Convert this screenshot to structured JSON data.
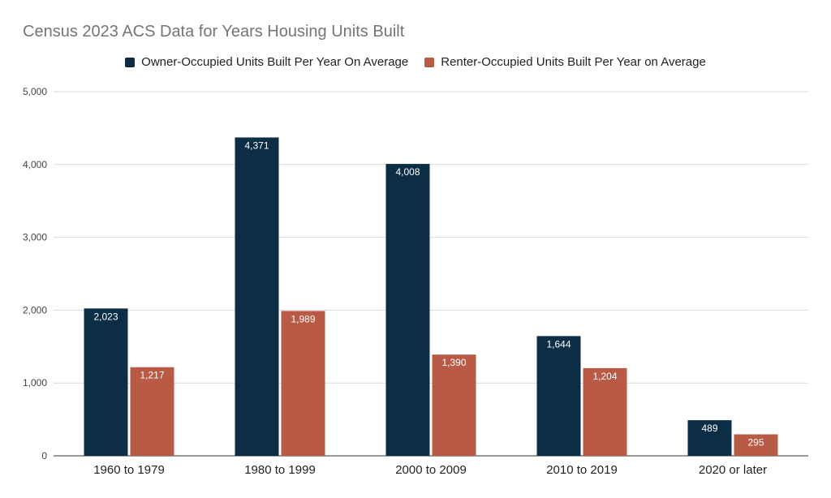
{
  "chart_data": {
    "type": "bar",
    "title": "Census 2023 ACS Data for Years Housing Units Built",
    "categories": [
      "1960 to 1979",
      "1980 to 1999",
      "2000 to 2009",
      "2010 to 2019",
      "2020 or later"
    ],
    "series": [
      {
        "name": "Owner-Occupied Units Built Per Year On Average",
        "color": "#0b2d45",
        "values": [
          2023,
          4371,
          4008,
          1644,
          489
        ],
        "labels": [
          "2,023",
          "4,371",
          "4,008",
          "1,644",
          "489"
        ]
      },
      {
        "name": "Renter-Occupied Units Built Per Year on Average",
        "color": "#b85a45",
        "values": [
          1217,
          1989,
          1390,
          1204,
          295
        ],
        "labels": [
          "1,217",
          "1,989",
          "1,390",
          "1,204",
          "295"
        ]
      }
    ],
    "ylim": [
      0,
      5000
    ],
    "yticks": [
      0,
      1000,
      2000,
      3000,
      4000,
      5000
    ],
    "ytick_labels": [
      "0",
      "1,000",
      "2,000",
      "3,000",
      "4,000",
      "5,000"
    ],
    "xlabel": "",
    "ylabel": "",
    "grid": true,
    "legend": "top"
  }
}
